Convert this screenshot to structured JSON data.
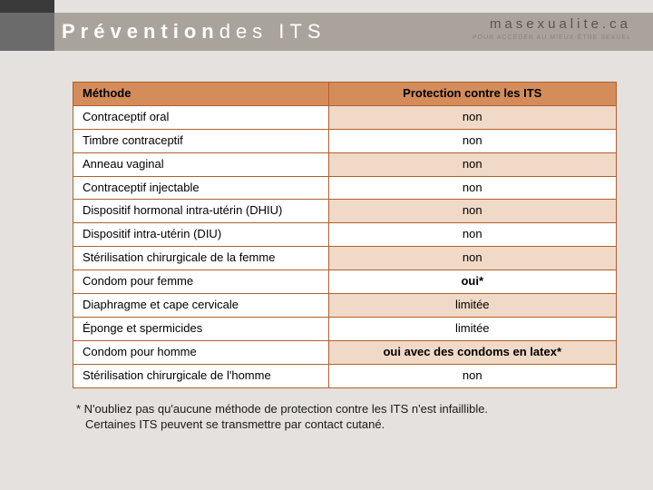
{
  "header": {
    "title_bold": "Prévention",
    "title_rest": " des ITS",
    "brand": "masexualite.ca",
    "brand_sub": "POUR ACCÉDER AU MIEUX-ÊTRE SEXUEL"
  },
  "table": {
    "col_method": "Méthode",
    "col_protection": "Protection contre les ITS",
    "rows": [
      {
        "method": "Contraceptif oral",
        "value": "non",
        "bold": false
      },
      {
        "method": "Timbre contraceptif",
        "value": "non",
        "bold": false
      },
      {
        "method": "Anneau vaginal",
        "value": "non",
        "bold": false
      },
      {
        "method": "Contraceptif injectable",
        "value": "non",
        "bold": false
      },
      {
        "method": "Dispositif hormonal intra-utérin (DHIU)",
        "value": "non",
        "bold": false
      },
      {
        "method": "Dispositif intra-utérin (DIU)",
        "value": "non",
        "bold": false
      },
      {
        "method": "Stérilisation chirurgicale de la femme",
        "value": "non",
        "bold": false
      },
      {
        "method": "Condom pour femme",
        "value": "oui*",
        "bold": true
      },
      {
        "method": "Diaphragme et cape cervicale",
        "value": "limitée",
        "bold": false
      },
      {
        "method": "Éponge et spermicides",
        "value": "limitée",
        "bold": false
      },
      {
        "method": "Condom pour homme",
        "value": "oui avec des condoms en latex*",
        "bold": true
      },
      {
        "method": "Stérilisation chirurgicale de l'homme",
        "value": "non",
        "bold": false
      }
    ]
  },
  "footnote": {
    "line1": "* N'oubliez pas qu'aucune méthode de protection contre les ITS n'est infaillible.",
    "line2": "Certaines ITS peuvent se transmettre par contact cutané."
  },
  "colors": {
    "header_bar": "#a9a39c",
    "header_left": "#6b6b6b",
    "page_bg": "#e5e1de",
    "table_header_bg": "#d48c5a",
    "table_border": "#b15f2e",
    "row_alt_bg": "#f0d9c6",
    "row_bg": "#ffffff"
  }
}
